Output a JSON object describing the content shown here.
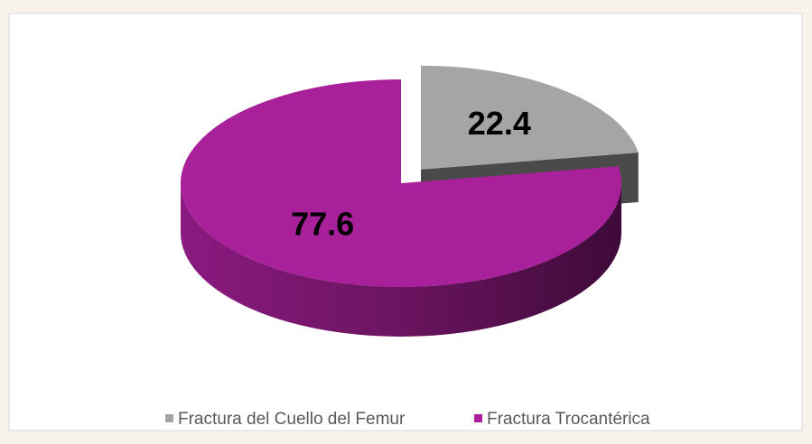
{
  "chart_data": {
    "type": "pie",
    "categories": [
      "Fractura del Cuello del Femur",
      "Fractura Trocantérica"
    ],
    "values": [
      22.4,
      77.6
    ],
    "colors": [
      "#a6a5a4",
      "#a8209a"
    ],
    "legend": "bottom"
  }
}
